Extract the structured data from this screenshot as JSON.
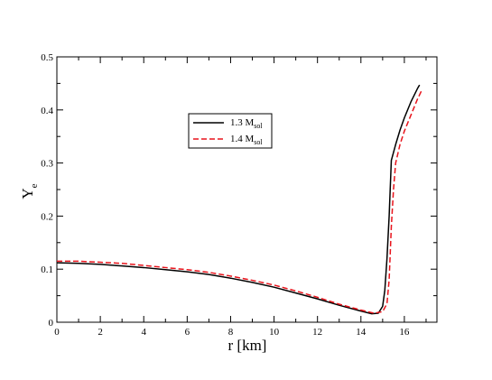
{
  "chart_data": {
    "type": "line",
    "xlabel": "r [km]",
    "ylabel": {
      "main": "Y",
      "sub": "e"
    },
    "xlim": [
      0,
      17.5
    ],
    "ylim": [
      0,
      0.5
    ],
    "xticks": [
      0,
      2,
      4,
      6,
      8,
      10,
      12,
      14,
      16
    ],
    "yticks": [
      0,
      0.1,
      0.2,
      0.3,
      0.4,
      0.5
    ],
    "xtick_labels": [
      "0",
      "2",
      "4",
      "6",
      "8",
      "10",
      "12",
      "14",
      "16"
    ],
    "ytick_labels": [
      "0",
      "0.1",
      "0.2",
      "0.3",
      "0.4",
      "0.5"
    ],
    "grid": false,
    "legend_position": "upper-center",
    "series": [
      {
        "name": "1.3 M",
        "name_sub": "sol",
        "color": "#000000",
        "dash": "solid",
        "x": [
          0,
          1,
          2,
          3,
          4,
          5,
          6,
          7,
          8,
          9,
          10,
          11,
          12,
          13,
          14,
          14.5,
          14.8,
          15.0,
          15.1,
          15.2,
          15.3,
          15.4,
          15.6,
          15.8,
          16.0,
          16.3,
          16.6,
          16.7
        ],
        "y": [
          0.112,
          0.111,
          0.109,
          0.106,
          0.103,
          0.099,
          0.095,
          0.09,
          0.083,
          0.075,
          0.066,
          0.055,
          0.044,
          0.032,
          0.021,
          0.016,
          0.017,
          0.03,
          0.06,
          0.12,
          0.2,
          0.305,
          0.335,
          0.362,
          0.385,
          0.415,
          0.44,
          0.447
        ]
      },
      {
        "name": "1.4 M",
        "name_sub": "sol",
        "color": "#e8141c",
        "dash": "dashed",
        "x": [
          0,
          1,
          2,
          3,
          4,
          5,
          6,
          7,
          8,
          9,
          10,
          11,
          12,
          13,
          14,
          14.6,
          15.0,
          15.2,
          15.3,
          15.4,
          15.5,
          15.6,
          15.8,
          16.0,
          16.3,
          16.6,
          16.8
        ],
        "y": [
          0.115,
          0.115,
          0.113,
          0.111,
          0.107,
          0.103,
          0.099,
          0.094,
          0.087,
          0.079,
          0.07,
          0.059,
          0.047,
          0.034,
          0.023,
          0.017,
          0.02,
          0.035,
          0.08,
          0.18,
          0.25,
          0.3,
          0.335,
          0.36,
          0.39,
          0.42,
          0.437
        ]
      }
    ]
  }
}
